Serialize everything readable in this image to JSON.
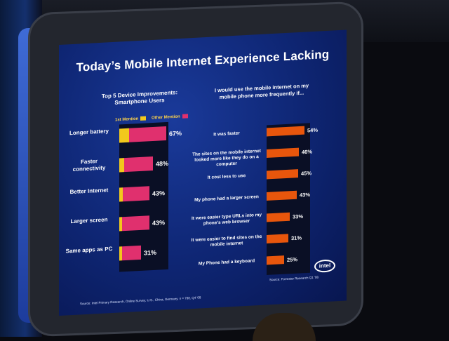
{
  "title": "Today’s Mobile Internet Experience Lacking",
  "left_heading_line1": "Top 5 Device Improvements:",
  "left_heading_line2": "Smartphone Users",
  "right_heading_line1": "I would use the mobile internet on my",
  "right_heading_line2": "mobile phone more frequently if...",
  "legend": {
    "first": "1st Mention",
    "other": "Other Mention",
    "first_color": "#f2c81c",
    "other_color": "#e0306e"
  },
  "right_bar_color": "#e8560c",
  "logo": "intel",
  "source_left": "Source: Intel Primary Research, Online Survey, U.S., China, Germany, n = 788, Q4 '08",
  "source_right": "Source: Forrester Research Q1 '08",
  "chart_data": [
    {
      "type": "bar",
      "title": "Top 5 Device Improvements: Smartphone Users",
      "categories": [
        "Longer battery",
        "Faster connectivity",
        "Better Internet",
        "Larger screen",
        "Same apps as PC"
      ],
      "series": [
        {
          "name": "1st Mention",
          "values": [
            14,
            7,
            5,
            4,
            4
          ]
        },
        {
          "name": "Other Mention",
          "values": [
            53,
            41,
            38,
            39,
            27
          ]
        }
      ],
      "totals": [
        67,
        48,
        43,
        43,
        31
      ],
      "labels": [
        "67%",
        "48%",
        "43%",
        "43%",
        "31%"
      ]
    },
    {
      "type": "bar",
      "title": "I would use the mobile internet on my mobile phone more frequently if...",
      "categories": [
        "It was faster",
        "The sites on the mobile internet looked more like they do on a computer",
        "It cost less to use",
        "My phone had a larger screen",
        "It were easier type URLs into my phone’s web browser",
        "It were easier to find sites on the mobile internet",
        "My Phone had a keyboard"
      ],
      "values": [
        54,
        46,
        45,
        43,
        33,
        31,
        25
      ],
      "labels": [
        "54%",
        "46%",
        "45%",
        "43%",
        "33%",
        "31%",
        "25%"
      ]
    }
  ]
}
